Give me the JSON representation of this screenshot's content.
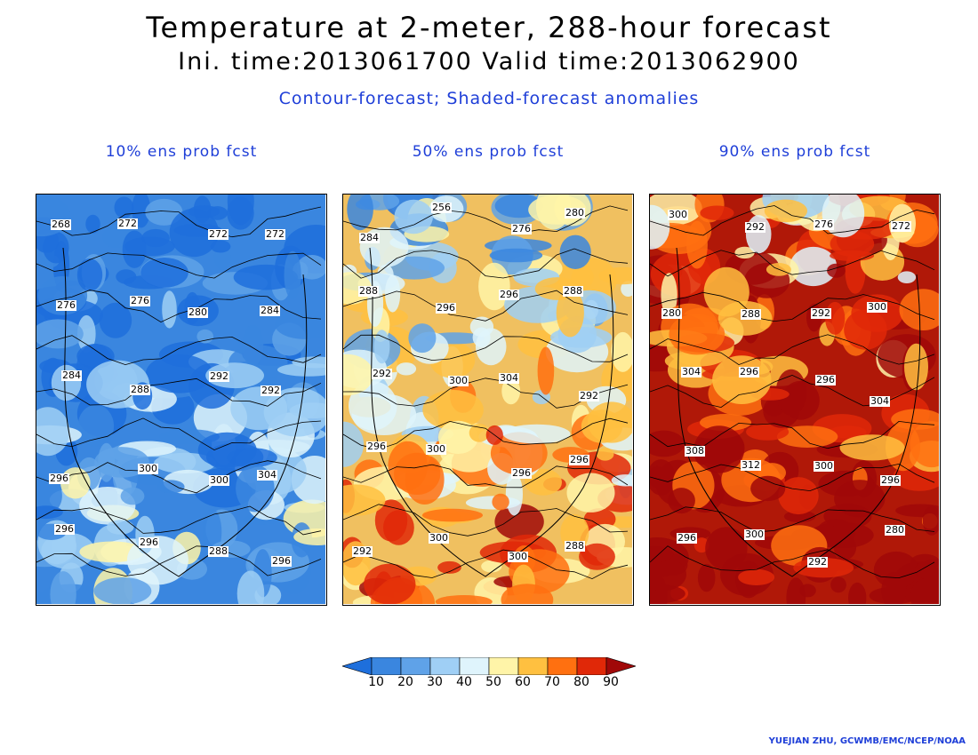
{
  "title": "Temperature at 2-meter, 288-hour forecast",
  "subtitle": "Ini. time:2013061700    Valid time:2013062900",
  "legend_description": "Contour-forecast; Shaded-forecast anomalies",
  "panels": [
    {
      "label": "10% ens prob fcst",
      "base_color": "#3a86df",
      "warm_fraction": 0.15,
      "contour_labels": [
        "268",
        "272",
        "272",
        "272",
        "276",
        "276",
        "280",
        "284",
        "284",
        "288",
        "292",
        "292",
        "296",
        "300",
        "300",
        "304",
        "296",
        "296",
        "288",
        "296"
      ]
    },
    {
      "label": "50% ens prob fcst",
      "base_color": "#f0c060",
      "warm_fraction": 0.55,
      "contour_labels": [
        "284",
        "256",
        "276",
        "280",
        "288",
        "296",
        "296",
        "288",
        "292",
        "300",
        "304",
        "292",
        "296",
        "300",
        "296",
        "296",
        "292",
        "300",
        "300",
        "288"
      ]
    },
    {
      "label": "90% ens prob fcst",
      "base_color": "#b01808",
      "warm_fraction": 0.9,
      "contour_labels": [
        "300",
        "292",
        "276",
        "272",
        "280",
        "288",
        "292",
        "300",
        "304",
        "296",
        "296",
        "304",
        "308",
        "312",
        "300",
        "296",
        "296",
        "300",
        "292",
        "280"
      ]
    }
  ],
  "colorbar": {
    "ticks": [
      "10",
      "20",
      "30",
      "40",
      "50",
      "60",
      "70",
      "80",
      "90"
    ],
    "colors": [
      "#1e6fdc",
      "#3a86df",
      "#5fa2e8",
      "#9fcff5",
      "#dff4fc",
      "#fff4a8",
      "#ffc040",
      "#ff7010",
      "#e02808",
      "#a00808"
    ]
  },
  "credit": "YUEJIAN ZHU, GCWMB/EMC/NCEP/NOAA"
}
